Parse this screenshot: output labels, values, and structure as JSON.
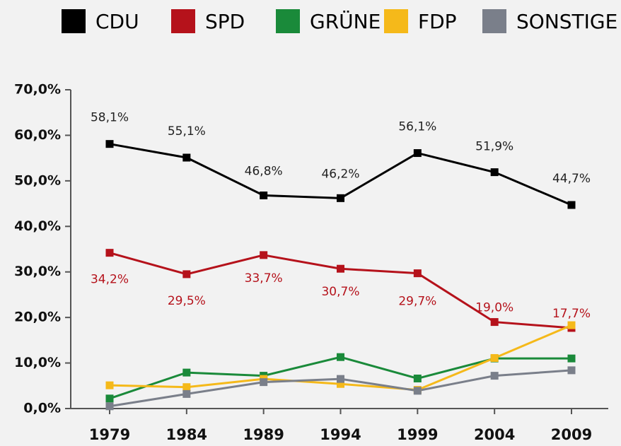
{
  "chart_data": {
    "type": "line",
    "categories": [
      "1979",
      "1984",
      "1989",
      "1994",
      "1999",
      "2004",
      "2009"
    ],
    "series": [
      {
        "name": "CDU",
        "color": "#000000",
        "values": [
          58.1,
          55.1,
          46.8,
          46.2,
          56.1,
          51.9,
          44.7
        ],
        "value_labels": [
          "58,1%",
          "55,1%",
          "46,8%",
          "46,2%",
          "56,1%",
          "51,9%",
          "44,7%"
        ]
      },
      {
        "name": "SPD",
        "color": "#b5121b",
        "values": [
          34.2,
          29.5,
          33.7,
          30.7,
          29.7,
          19.0,
          17.7
        ],
        "value_labels": [
          "34,2%",
          "29,5%",
          "33,7%",
          "30,7%",
          "29,7%",
          "19,0%",
          "17,7%"
        ]
      },
      {
        "name": "GRÜNE",
        "color": "#1a8a3a",
        "values": [
          2.2,
          7.9,
          7.2,
          11.3,
          6.6,
          11.0,
          11.0
        ]
      },
      {
        "name": "FDP",
        "color": "#f5b91a",
        "values": [
          5.1,
          4.7,
          6.5,
          5.4,
          4.1,
          11.1,
          18.3
        ]
      },
      {
        "name": "SONSTIGE",
        "color": "#7a7f8a",
        "values": [
          0.5,
          3.2,
          5.8,
          6.5,
          3.9,
          7.2,
          8.4
        ]
      }
    ],
    "ylim": [
      0,
      70
    ],
    "yticks": [
      {
        "value": 0,
        "label": "0,0%"
      },
      {
        "value": 10,
        "label": "10,0%"
      },
      {
        "value": 20,
        "label": "20,0%"
      },
      {
        "value": 30,
        "label": "30,0%"
      },
      {
        "value": 40,
        "label": "40,0%"
      },
      {
        "value": 50,
        "label": "50,0%"
      },
      {
        "value": 60,
        "label": "60,0%"
      },
      {
        "value": 70,
        "label": "70,0%"
      }
    ],
    "grid": false,
    "legend": "top"
  }
}
